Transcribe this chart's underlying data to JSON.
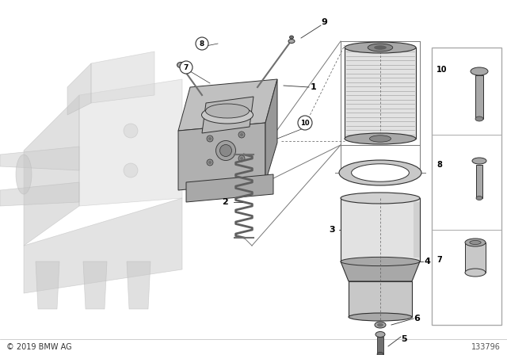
{
  "bg_color": "#ffffff",
  "copyright": "© 2019 BMW AG",
  "part_number": "133796",
  "gray_light": "#c8c8c8",
  "gray_med": "#a8a8a8",
  "gray_dark": "#707070",
  "gray_vlight": "#e2e2e2",
  "gray_engine": "#d8d8d8",
  "outline": "#303030",
  "white": "#ffffff"
}
